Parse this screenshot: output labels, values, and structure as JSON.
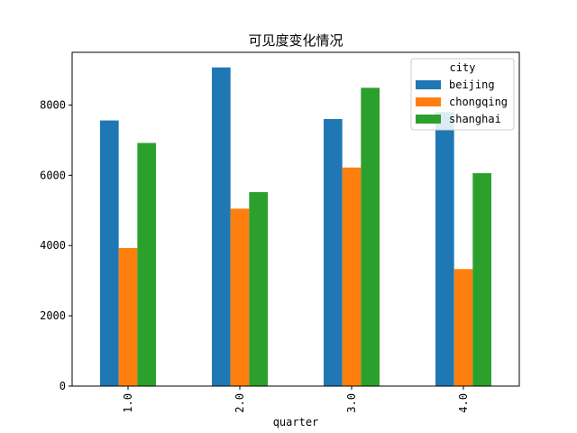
{
  "chart_data": {
    "type": "bar",
    "title": "可见度变化情况",
    "xlabel": "quarter",
    "ylabel": "",
    "categories": [
      "1.0",
      "2.0",
      "3.0",
      "4.0"
    ],
    "ylim": [
      0,
      9500
    ],
    "yticks": [
      0,
      2000,
      4000,
      6000,
      8000
    ],
    "ytick_labels": [
      "0",
      "2000",
      "4000",
      "6000",
      "8000"
    ],
    "grid": false,
    "legend": {
      "title": "city",
      "position": "top-right"
    },
    "series": [
      {
        "name": "beijing",
        "color": "#1f77b4",
        "values": [
          7560,
          9070,
          7600,
          7800
        ]
      },
      {
        "name": "chongqing",
        "color": "#ff7f0e",
        "values": [
          3930,
          5050,
          6220,
          3330
        ]
      },
      {
        "name": "shanghai",
        "color": "#2ca02c",
        "values": [
          6920,
          5520,
          8490,
          6060
        ]
      }
    ]
  }
}
